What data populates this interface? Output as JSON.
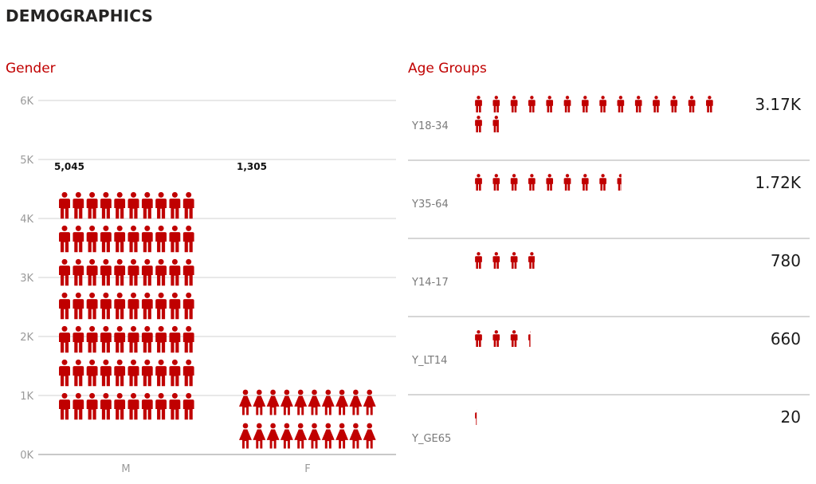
{
  "header": {
    "title": "DEMOGRAPHICS"
  },
  "colors": {
    "accent": "#c00000",
    "grid": "#d0d0d0"
  },
  "icons": {
    "male": "male-person-icon",
    "female": "female-person-icon"
  },
  "chart_data": [
    {
      "type": "bar",
      "title": "Gender",
      "categories": [
        "M",
        "F"
      ],
      "values": [
        5045,
        1305
      ],
      "data_labels": [
        "5,045",
        "1,305"
      ],
      "ylim": [
        0,
        6000
      ],
      "yticks": [
        0,
        1000,
        2000,
        3000,
        4000,
        5000,
        6000
      ],
      "ytick_labels": [
        "0K",
        "1K",
        "2K",
        "3K",
        "4K",
        "5K",
        "6K"
      ],
      "grid": true
    },
    {
      "type": "bar",
      "title": "Age Groups",
      "categories": [
        "Y18-34",
        "Y35-64",
        "Y14-17",
        "Y_LT14",
        "Y_GE65"
      ],
      "values": [
        3170,
        1720,
        780,
        660,
        20
      ],
      "data_labels": [
        "3.17K",
        "1.72K",
        "780",
        "660",
        "20"
      ],
      "grid": true
    }
  ]
}
